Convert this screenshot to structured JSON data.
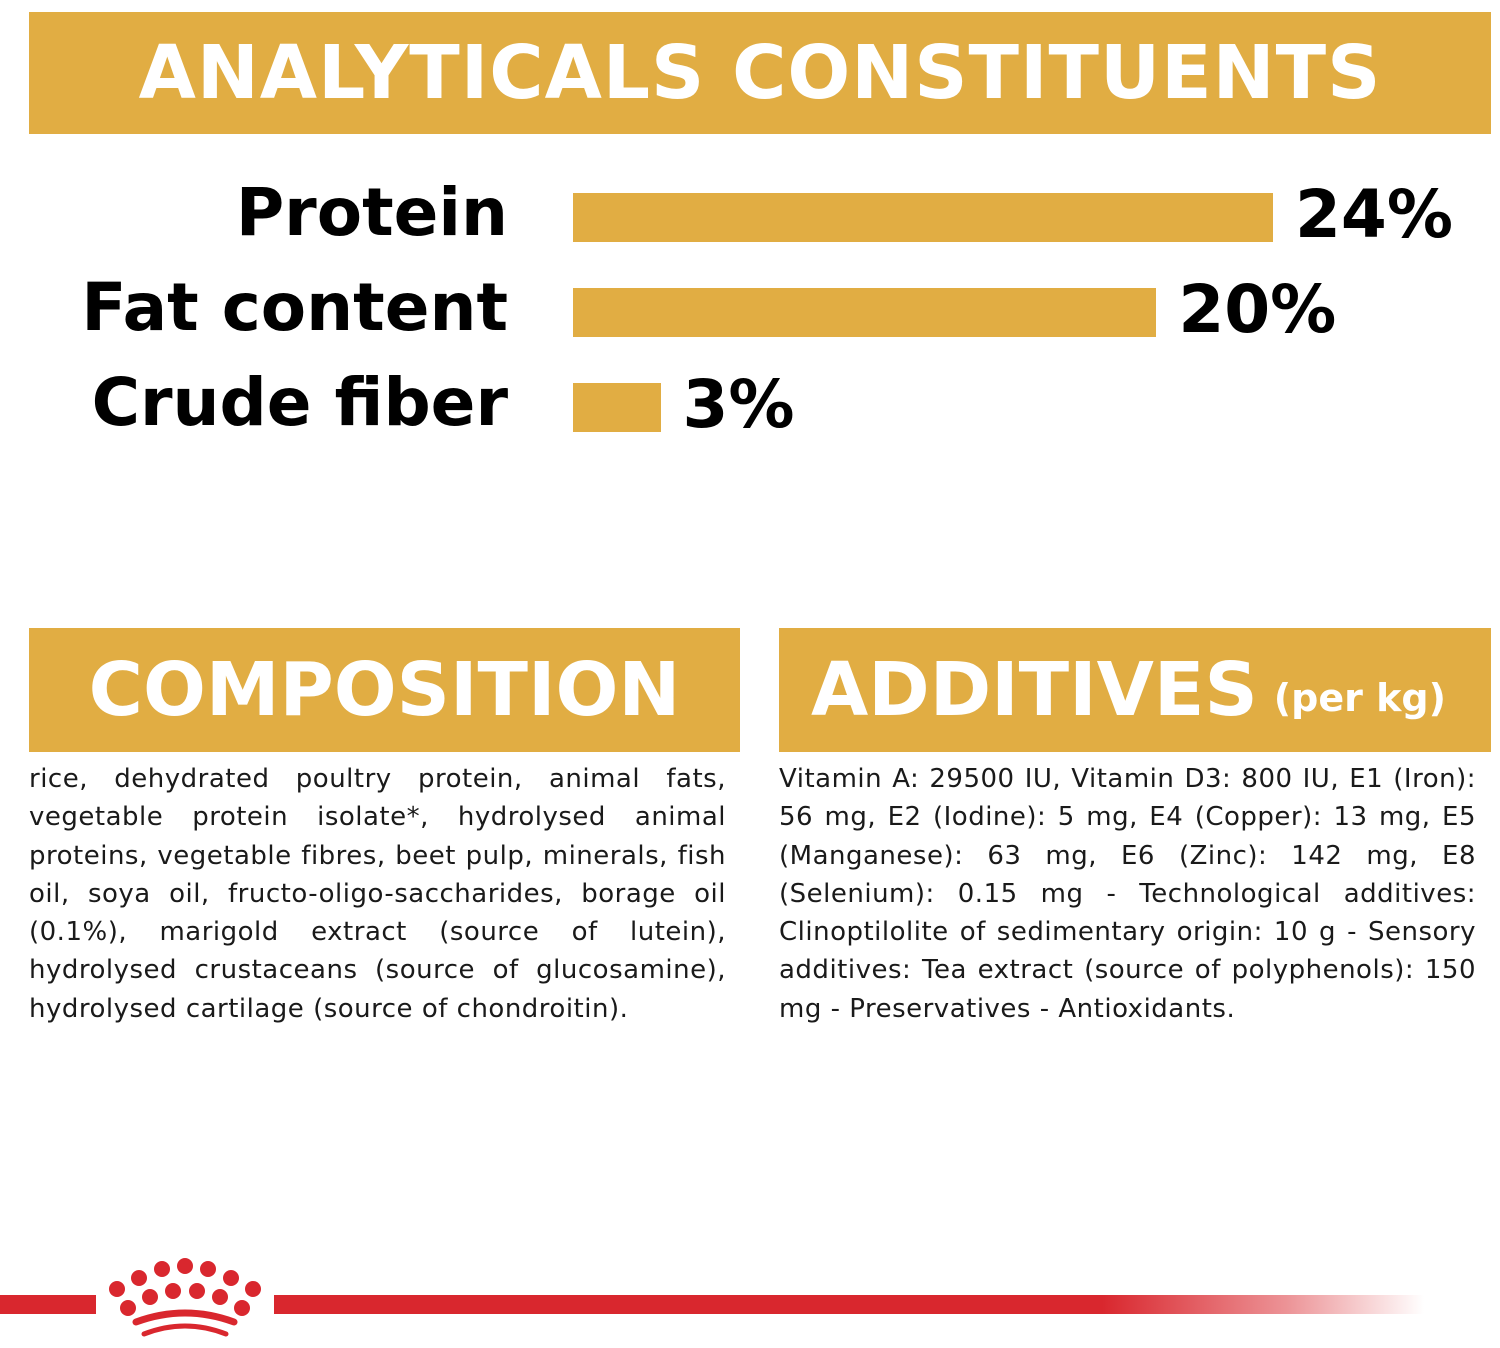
{
  "analytical": {
    "title": "ANALYTICALS CONSTITUENTS"
  },
  "composition": {
    "title": "COMPOSITION",
    "text": "rice, dehydrated poultry protein, animal fats, vegetable protein isolate*, hydrolysed animal proteins, vegetable fibres, beet pulp, minerals, fish oil, soya oil, fructo-oligo-saccharides, borage oil (0.1%), marigold extract (source of lutein), hydrolysed crustaceans (source of glucosamine), hydrolysed cartilage (source of chondroitin)."
  },
  "additives": {
    "title": "ADDITIVES",
    "title_suffix": "(per kg)",
    "text": "Vitamin A: 29500 IU, Vitamin D3: 800 IU, E1 (Iron): 56 mg, E2 (Iodine): 5 mg, E4 (Copper): 13 mg, E5 (Manganese): 63 mg, E6 (Zinc): 142 mg, E8 (Selenium): 0.15 mg - Technological additives: Clinoptilolite of sedimentary origin: 10 g - Sensory additives: Tea extract (source of polyphenols): 150 mg - Preservatives - Antioxidants."
  },
  "colors": {
    "accent": "#e1ad43",
    "brand_red": "#d9272e",
    "text": "#000000"
  },
  "chart_data": {
    "type": "bar",
    "orientation": "horizontal",
    "categories": [
      "Protein",
      "Fat content",
      "Crude fiber"
    ],
    "values": [
      24,
      20,
      3
    ],
    "value_labels": [
      "24%",
      "20%",
      "3%"
    ],
    "unit": "%",
    "xlim": [
      0,
      24
    ],
    "grid": false,
    "legend": "none"
  }
}
